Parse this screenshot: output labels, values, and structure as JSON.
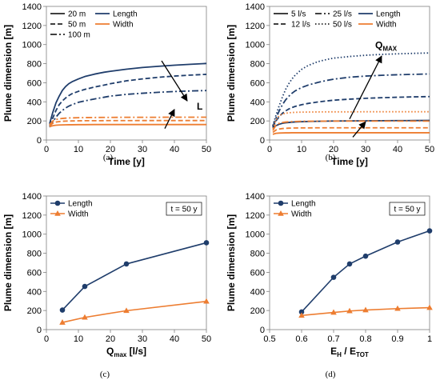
{
  "colors": {
    "blue": "#1f3d6b",
    "orange": "#ed7d31",
    "arrow": "#000000"
  },
  "chart_data": [
    {
      "type": "line",
      "id": "a",
      "caption": "(a)",
      "xlabel": "Time [y]",
      "ylabel": "Plume dimension [m]",
      "xlim": [
        0,
        50
      ],
      "ylim": [
        0,
        1400
      ],
      "xticks": [
        0,
        10,
        20,
        30,
        40,
        50
      ],
      "yticks": [
        0,
        200,
        400,
        600,
        800,
        1000,
        1200,
        1400
      ],
      "legend": {
        "position": "top-left",
        "style_entries": [
          {
            "label": "20 m",
            "dash": "solid"
          },
          {
            "label": "50 m",
            "dash": "dash"
          },
          {
            "label": "100 m",
            "dash": "dashdot"
          }
        ],
        "color_entries": [
          {
            "label": "Length",
            "color": "blue"
          },
          {
            "label": "Width",
            "color": "orange"
          }
        ]
      },
      "annotations": [
        {
          "label": "L",
          "arrow_from": [
            36,
            830
          ],
          "arrow_to": [
            44,
            410
          ],
          "text_at": [
            47,
            320
          ]
        }
      ],
      "second_arrow": {
        "from": [
          37,
          120
        ],
        "to": [
          40,
          320
        ]
      },
      "x": [
        1,
        2,
        3,
        4,
        5,
        6,
        7,
        8,
        10,
        12,
        15,
        18,
        20,
        25,
        30,
        35,
        40,
        45,
        50
      ],
      "series": [
        {
          "name": "Length",
          "group": "20 m",
          "color": "blue",
          "dash": "solid",
          "values": [
            170,
            290,
            390,
            460,
            520,
            560,
            590,
            610,
            640,
            665,
            690,
            710,
            720,
            742,
            760,
            772,
            784,
            793,
            802
          ]
        },
        {
          "name": "Length",
          "group": "50 m",
          "color": "blue",
          "dash": "dash",
          "values": [
            150,
            230,
            310,
            370,
            410,
            440,
            465,
            485,
            510,
            530,
            555,
            575,
            590,
            620,
            640,
            657,
            670,
            680,
            688
          ]
        },
        {
          "name": "Length",
          "group": "100 m",
          "color": "blue",
          "dash": "dashdot",
          "values": [
            135,
            190,
            240,
            280,
            310,
            335,
            355,
            370,
            395,
            410,
            430,
            448,
            460,
            478,
            490,
            500,
            508,
            514,
            518
          ]
        },
        {
          "name": "Width",
          "group": "20 m",
          "color": "orange",
          "dash": "solid",
          "values": [
            140,
            150,
            155,
            157,
            158,
            159,
            160,
            160,
            161,
            161,
            162,
            162,
            162,
            162,
            162,
            162,
            162,
            162,
            162
          ]
        },
        {
          "name": "Width",
          "group": "50 m",
          "color": "orange",
          "dash": "dash",
          "values": [
            150,
            175,
            188,
            193,
            196,
            198,
            199,
            200,
            201,
            202,
            202,
            203,
            203,
            203,
            204,
            204,
            204,
            204,
            204
          ]
        },
        {
          "name": "Width",
          "group": "100 m",
          "color": "orange",
          "dash": "dashdot",
          "values": [
            160,
            200,
            215,
            222,
            226,
            229,
            231,
            232,
            234,
            235,
            236,
            237,
            237,
            238,
            238,
            238,
            239,
            239,
            239
          ]
        }
      ]
    },
    {
      "type": "line",
      "id": "b",
      "caption": "(b)",
      "xlabel": "Time [y]",
      "ylabel": "Plume dimension [m]",
      "xlim": [
        0,
        50
      ],
      "ylim": [
        0,
        1400
      ],
      "xticks": [
        0,
        10,
        20,
        30,
        40,
        50
      ],
      "yticks": [
        0,
        200,
        400,
        600,
        800,
        1000,
        1200,
        1400
      ],
      "legend": {
        "position": "top-left",
        "style_entries": [
          {
            "label": "5 l/s",
            "dash": "solid"
          },
          {
            "label": "25 l/s",
            "dash": "dashdot"
          },
          {
            "label": "12 l/s",
            "dash": "dash"
          },
          {
            "label": "50 l/s",
            "dash": "dot"
          }
        ],
        "color_entries": [
          {
            "label": "Length",
            "color": "blue"
          },
          {
            "label": "Width",
            "color": "orange"
          }
        ]
      },
      "annotations": [
        {
          "label": "Q",
          "sub": "MAX",
          "arrow_from": [
            25,
            220
          ],
          "arrow_to": [
            35,
            880
          ],
          "text_at": [
            33,
            960
          ]
        }
      ],
      "second_arrow": {
        "from": [
          26,
          30
        ],
        "to": [
          30,
          190
        ]
      },
      "x": [
        1,
        2,
        3,
        4,
        5,
        6,
        7,
        8,
        10,
        12,
        15,
        18,
        20,
        25,
        30,
        35,
        40,
        45,
        50
      ],
      "series": [
        {
          "name": "Length",
          "group": "5 l/s",
          "color": "blue",
          "dash": "solid",
          "values": [
            120,
            150,
            165,
            175,
            180,
            184,
            187,
            189,
            192,
            194,
            196,
            198,
            199,
            200,
            201,
            202,
            203,
            204,
            205
          ]
        },
        {
          "name": "Length",
          "group": "12 l/s",
          "color": "blue",
          "dash": "dash",
          "values": [
            130,
            200,
            245,
            280,
            305,
            325,
            340,
            352,
            370,
            383,
            398,
            410,
            417,
            428,
            437,
            443,
            448,
            452,
            455
          ]
        },
        {
          "name": "Length",
          "group": "25 l/s",
          "color": "blue",
          "dash": "dashdot",
          "values": [
            140,
            230,
            305,
            370,
            420,
            458,
            490,
            515,
            550,
            575,
            603,
            625,
            637,
            658,
            670,
            678,
            684,
            688,
            692
          ]
        },
        {
          "name": "Length",
          "group": "50 l/s",
          "color": "blue",
          "dash": "dot",
          "values": [
            150,
            260,
            360,
            450,
            530,
            590,
            640,
            680,
            740,
            780,
            820,
            845,
            858,
            875,
            888,
            897,
            903,
            908,
            912
          ]
        },
        {
          "name": "Width",
          "group": "5 l/s",
          "color": "orange",
          "dash": "solid",
          "values": [
            60,
            70,
            73,
            74,
            75,
            75,
            76,
            76,
            76,
            76,
            76,
            76,
            76,
            76,
            76,
            76,
            76,
            76,
            76
          ]
        },
        {
          "name": "Width",
          "group": "12 l/s",
          "color": "orange",
          "dash": "dash",
          "values": [
            80,
            105,
            115,
            120,
            122,
            124,
            125,
            126,
            127,
            127,
            128,
            128,
            128,
            128,
            128,
            128,
            128,
            128,
            128
          ]
        },
        {
          "name": "Width",
          "group": "25 l/s",
          "color": "orange",
          "dash": "dashdot",
          "values": [
            100,
            155,
            175,
            183,
            188,
            191,
            193,
            194,
            196,
            197,
            197,
            198,
            198,
            198,
            198,
            198,
            198,
            198,
            198
          ]
        },
        {
          "name": "Width",
          "group": "50 l/s",
          "color": "orange",
          "dash": "dot",
          "values": [
            120,
            210,
            255,
            272,
            280,
            285,
            288,
            290,
            292,
            293,
            294,
            295,
            295,
            295,
            296,
            296,
            296,
            296,
            296
          ]
        }
      ]
    },
    {
      "type": "line",
      "id": "c",
      "caption": "(c)",
      "xlabel": "Q",
      "xlabel_sub": "max",
      "xlabel_suffix": " [l/s]",
      "ylabel": "Plume dimension [m]",
      "xlim": [
        0,
        50
      ],
      "ylim": [
        0,
        1400
      ],
      "xticks": [
        0,
        10,
        20,
        30,
        40,
        50
      ],
      "yticks": [
        0,
        200,
        400,
        600,
        800,
        1000,
        1200,
        1400
      ],
      "legend": {
        "position": "top-left",
        "entries": [
          {
            "label": "Length",
            "color": "blue",
            "marker": "circle"
          },
          {
            "label": "Width",
            "color": "orange",
            "marker": "triangle"
          }
        ]
      },
      "note": "t = 50 y",
      "series": [
        {
          "name": "Length",
          "color": "blue",
          "marker": "circle",
          "x": [
            5,
            12,
            25,
            50
          ],
          "values": [
            205,
            452,
            688,
            910
          ]
        },
        {
          "name": "Width",
          "color": "orange",
          "marker": "triangle",
          "x": [
            5,
            12,
            25,
            50
          ],
          "values": [
            75,
            128,
            198,
            296
          ]
        }
      ]
    },
    {
      "type": "line",
      "id": "d",
      "caption": "(d)",
      "xlabel": "E",
      "xlabel_sub": "H",
      "xlabel_mid": " / E",
      "xlabel_sub2": "TOT",
      "ylabel": "Plume dimension [m]",
      "xlim": [
        0.5,
        1
      ],
      "ylim": [
        0,
        1400
      ],
      "xticks": [
        0.5,
        0.6,
        0.7,
        0.8,
        0.9,
        1
      ],
      "xticklabels": [
        "0.5",
        "0.6",
        "0.7",
        "0.8",
        "0.9",
        "1"
      ],
      "yticks": [
        0,
        200,
        400,
        600,
        800,
        1000,
        1200,
        1400
      ],
      "legend": {
        "position": "top-left",
        "entries": [
          {
            "label": "Length",
            "color": "blue",
            "marker": "circle"
          },
          {
            "label": "Width",
            "color": "orange",
            "marker": "triangle"
          }
        ]
      },
      "note": "t = 50 y",
      "series": [
        {
          "name": "Length",
          "color": "blue",
          "marker": "circle",
          "x": [
            0.6,
            0.7,
            0.75,
            0.8,
            0.9,
            1.0
          ],
          "values": [
            185,
            548,
            688,
            770,
            918,
            1035
          ]
        },
        {
          "name": "Width",
          "color": "orange",
          "marker": "triangle",
          "x": [
            0.6,
            0.7,
            0.75,
            0.8,
            0.9,
            1.0
          ],
          "values": [
            148,
            180,
            195,
            205,
            220,
            230
          ]
        }
      ]
    }
  ]
}
